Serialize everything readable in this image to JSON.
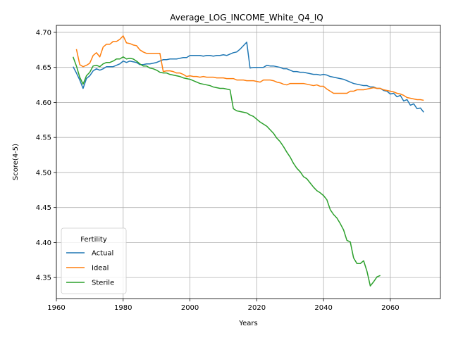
{
  "chart_data": {
    "type": "line",
    "title": "Average_LOG_INCOME_White_Q4_IQ",
    "xlabel": "Years",
    "ylabel": "Score(4-5)",
    "xlim": [
      1960,
      2075
    ],
    "ylim": [
      4.32,
      4.71
    ],
    "xticks": [
      1960,
      1980,
      2000,
      2020,
      2040,
      2060
    ],
    "yticks": [
      4.35,
      4.4,
      4.45,
      4.5,
      4.55,
      4.6,
      4.65,
      4.7
    ],
    "grid": true,
    "legend": {
      "title": "Fertility",
      "placement": "lower-left"
    },
    "series": [
      {
        "name": "Actual",
        "color": "#1f77b4",
        "points": [
          [
            1965,
            4.651
          ],
          [
            1966,
            4.642
          ],
          [
            1967,
            4.632
          ],
          [
            1968,
            4.62
          ],
          [
            1969,
            4.634
          ],
          [
            1970,
            4.638
          ],
          [
            1971,
            4.645
          ],
          [
            1972,
            4.648
          ],
          [
            1973,
            4.646
          ],
          [
            1974,
            4.648
          ],
          [
            1975,
            4.651
          ],
          [
            1976,
            4.651
          ],
          [
            1977,
            4.651
          ],
          [
            1978,
            4.653
          ],
          [
            1979,
            4.655
          ],
          [
            1980,
            4.659
          ],
          [
            1981,
            4.657
          ],
          [
            1982,
            4.659
          ],
          [
            1983,
            4.658
          ],
          [
            1984,
            4.657
          ],
          [
            1985,
            4.654
          ],
          [
            1986,
            4.654
          ],
          [
            1987,
            4.655
          ],
          [
            1988,
            4.655
          ],
          [
            1989,
            4.656
          ],
          [
            1990,
            4.657
          ],
          [
            1991,
            4.659
          ],
          [
            1992,
            4.661
          ],
          [
            1993,
            4.661
          ],
          [
            1994,
            4.662
          ],
          [
            1995,
            4.662
          ],
          [
            1996,
            4.662
          ],
          [
            1997,
            4.663
          ],
          [
            1998,
            4.664
          ],
          [
            1999,
            4.664
          ],
          [
            2000,
            4.667
          ],
          [
            2001,
            4.667
          ],
          [
            2002,
            4.667
          ],
          [
            2003,
            4.667
          ],
          [
            2004,
            4.666
          ],
          [
            2005,
            4.667
          ],
          [
            2006,
            4.667
          ],
          [
            2007,
            4.666
          ],
          [
            2008,
            4.667
          ],
          [
            2009,
            4.667
          ],
          [
            2010,
            4.668
          ],
          [
            2011,
            4.667
          ],
          [
            2012,
            4.669
          ],
          [
            2013,
            4.671
          ],
          [
            2014,
            4.672
          ],
          [
            2015,
            4.676
          ],
          [
            2016,
            4.681
          ],
          [
            2017,
            4.686
          ],
          [
            2018,
            4.649
          ],
          [
            2019,
            4.65
          ],
          [
            2020,
            4.65
          ],
          [
            2021,
            4.65
          ],
          [
            2022,
            4.65
          ],
          [
            2023,
            4.653
          ],
          [
            2024,
            4.652
          ],
          [
            2025,
            4.652
          ],
          [
            2026,
            4.651
          ],
          [
            2027,
            4.65
          ],
          [
            2028,
            4.648
          ],
          [
            2029,
            4.648
          ],
          [
            2030,
            4.646
          ],
          [
            2031,
            4.644
          ],
          [
            2032,
            4.644
          ],
          [
            2033,
            4.643
          ],
          [
            2034,
            4.643
          ],
          [
            2035,
            4.642
          ],
          [
            2036,
            4.641
          ],
          [
            2037,
            4.64
          ],
          [
            2038,
            4.64
          ],
          [
            2039,
            4.639
          ],
          [
            2040,
            4.64
          ],
          [
            2041,
            4.639
          ],
          [
            2042,
            4.637
          ],
          [
            2043,
            4.636
          ],
          [
            2044,
            4.635
          ],
          [
            2045,
            4.634
          ],
          [
            2046,
            4.633
          ],
          [
            2047,
            4.631
          ],
          [
            2048,
            4.629
          ],
          [
            2049,
            4.627
          ],
          [
            2050,
            4.626
          ],
          [
            2051,
            4.625
          ],
          [
            2052,
            4.624
          ],
          [
            2053,
            4.624
          ],
          [
            2054,
            4.622
          ],
          [
            2055,
            4.622
          ],
          [
            2056,
            4.62
          ],
          [
            2057,
            4.62
          ],
          [
            2058,
            4.617
          ],
          [
            2059,
            4.616
          ],
          [
            2060,
            4.612
          ],
          [
            2061,
            4.613
          ],
          [
            2062,
            4.608
          ],
          [
            2063,
            4.61
          ],
          [
            2064,
            4.602
          ],
          [
            2065,
            4.604
          ],
          [
            2066,
            4.596
          ],
          [
            2067,
            4.598
          ],
          [
            2068,
            4.591
          ],
          [
            2069,
            4.592
          ],
          [
            2070,
            4.586
          ]
        ]
      },
      {
        "name": "Ideal",
        "color": "#ff7f0e",
        "points": [
          [
            1966,
            4.676
          ],
          [
            1967,
            4.654
          ],
          [
            1968,
            4.651
          ],
          [
            1969,
            4.653
          ],
          [
            1970,
            4.656
          ],
          [
            1971,
            4.667
          ],
          [
            1972,
            4.671
          ],
          [
            1973,
            4.665
          ],
          [
            1974,
            4.679
          ],
          [
            1975,
            4.683
          ],
          [
            1976,
            4.683
          ],
          [
            1977,
            4.687
          ],
          [
            1978,
            4.687
          ],
          [
            1979,
            4.69
          ],
          [
            1980,
            4.695
          ],
          [
            1981,
            4.685
          ],
          [
            1982,
            4.684
          ],
          [
            1983,
            4.682
          ],
          [
            1984,
            4.681
          ],
          [
            1985,
            4.675
          ],
          [
            1986,
            4.672
          ],
          [
            1987,
            4.67
          ],
          [
            1988,
            4.67
          ],
          [
            1989,
            4.67
          ],
          [
            1990,
            4.67
          ],
          [
            1991,
            4.67
          ],
          [
            1992,
            4.644
          ],
          [
            1993,
            4.645
          ],
          [
            1994,
            4.645
          ],
          [
            1995,
            4.644
          ],
          [
            1996,
            4.642
          ],
          [
            1997,
            4.642
          ],
          [
            1998,
            4.64
          ],
          [
            1999,
            4.637
          ],
          [
            2000,
            4.638
          ],
          [
            2001,
            4.637
          ],
          [
            2002,
            4.637
          ],
          [
            2003,
            4.636
          ],
          [
            2004,
            4.637
          ],
          [
            2005,
            4.636
          ],
          [
            2006,
            4.636
          ],
          [
            2007,
            4.636
          ],
          [
            2008,
            4.635
          ],
          [
            2009,
            4.635
          ],
          [
            2010,
            4.635
          ],
          [
            2011,
            4.634
          ],
          [
            2012,
            4.634
          ],
          [
            2013,
            4.634
          ],
          [
            2014,
            4.632
          ],
          [
            2015,
            4.632
          ],
          [
            2016,
            4.632
          ],
          [
            2017,
            4.631
          ],
          [
            2018,
            4.631
          ],
          [
            2019,
            4.631
          ],
          [
            2020,
            4.63
          ],
          [
            2021,
            4.629
          ],
          [
            2022,
            4.632
          ],
          [
            2023,
            4.632
          ],
          [
            2024,
            4.632
          ],
          [
            2025,
            4.631
          ],
          [
            2026,
            4.629
          ],
          [
            2027,
            4.628
          ],
          [
            2028,
            4.626
          ],
          [
            2029,
            4.625
          ],
          [
            2030,
            4.627
          ],
          [
            2031,
            4.627
          ],
          [
            2032,
            4.627
          ],
          [
            2033,
            4.627
          ],
          [
            2034,
            4.627
          ],
          [
            2035,
            4.626
          ],
          [
            2036,
            4.625
          ],
          [
            2037,
            4.624
          ],
          [
            2038,
            4.625
          ],
          [
            2039,
            4.623
          ],
          [
            2040,
            4.623
          ],
          [
            2041,
            4.619
          ],
          [
            2042,
            4.616
          ],
          [
            2043,
            4.613
          ],
          [
            2044,
            4.613
          ],
          [
            2045,
            4.613
          ],
          [
            2046,
            4.613
          ],
          [
            2047,
            4.613
          ],
          [
            2048,
            4.616
          ],
          [
            2049,
            4.616
          ],
          [
            2050,
            4.618
          ],
          [
            2051,
            4.618
          ],
          [
            2052,
            4.618
          ],
          [
            2053,
            4.619
          ],
          [
            2054,
            4.62
          ],
          [
            2055,
            4.621
          ],
          [
            2056,
            4.62
          ],
          [
            2057,
            4.62
          ],
          [
            2058,
            4.618
          ],
          [
            2059,
            4.617
          ],
          [
            2060,
            4.616
          ],
          [
            2061,
            4.615
          ],
          [
            2062,
            4.613
          ],
          [
            2063,
            4.612
          ],
          [
            2064,
            4.61
          ],
          [
            2065,
            4.607
          ],
          [
            2066,
            4.606
          ],
          [
            2067,
            4.605
          ],
          [
            2068,
            4.604
          ],
          [
            2069,
            4.604
          ],
          [
            2070,
            4.603
          ]
        ]
      },
      {
        "name": "Sterile",
        "color": "#2ca02c",
        "points": [
          [
            1965,
            4.665
          ],
          [
            1966,
            4.652
          ],
          [
            1967,
            4.636
          ],
          [
            1968,
            4.626
          ],
          [
            1969,
            4.638
          ],
          [
            1970,
            4.643
          ],
          [
            1971,
            4.652
          ],
          [
            1972,
            4.653
          ],
          [
            1973,
            4.651
          ],
          [
            1974,
            4.655
          ],
          [
            1975,
            4.657
          ],
          [
            1976,
            4.657
          ],
          [
            1977,
            4.659
          ],
          [
            1978,
            4.662
          ],
          [
            1979,
            4.662
          ],
          [
            1980,
            4.665
          ],
          [
            1981,
            4.662
          ],
          [
            1982,
            4.663
          ],
          [
            1983,
            4.662
          ],
          [
            1984,
            4.659
          ],
          [
            1985,
            4.655
          ],
          [
            1986,
            4.652
          ],
          [
            1987,
            4.652
          ],
          [
            1988,
            4.649
          ],
          [
            1989,
            4.648
          ],
          [
            1990,
            4.646
          ],
          [
            1991,
            4.643
          ],
          [
            1992,
            4.642
          ],
          [
            1993,
            4.642
          ],
          [
            1994,
            4.64
          ],
          [
            1995,
            4.639
          ],
          [
            1996,
            4.638
          ],
          [
            1997,
            4.637
          ],
          [
            1998,
            4.635
          ],
          [
            1999,
            4.634
          ],
          [
            2000,
            4.633
          ],
          [
            2001,
            4.631
          ],
          [
            2002,
            4.629
          ],
          [
            2003,
            4.627
          ],
          [
            2004,
            4.626
          ],
          [
            2005,
            4.625
          ],
          [
            2006,
            4.624
          ],
          [
            2007,
            4.622
          ],
          [
            2008,
            4.621
          ],
          [
            2009,
            4.62
          ],
          [
            2010,
            4.62
          ],
          [
            2011,
            4.619
          ],
          [
            2012,
            4.618
          ],
          [
            2013,
            4.591
          ],
          [
            2014,
            4.588
          ],
          [
            2015,
            4.587
          ],
          [
            2016,
            4.586
          ],
          [
            2017,
            4.585
          ],
          [
            2018,
            4.582
          ],
          [
            2019,
            4.58
          ],
          [
            2020,
            4.576
          ],
          [
            2021,
            4.572
          ],
          [
            2022,
            4.569
          ],
          [
            2023,
            4.566
          ],
          [
            2024,
            4.561
          ],
          [
            2025,
            4.556
          ],
          [
            2026,
            4.549
          ],
          [
            2027,
            4.544
          ],
          [
            2028,
            4.537
          ],
          [
            2029,
            4.529
          ],
          [
            2030,
            4.522
          ],
          [
            2031,
            4.513
          ],
          [
            2032,
            4.506
          ],
          [
            2033,
            4.501
          ],
          [
            2034,
            4.494
          ],
          [
            2035,
            4.491
          ],
          [
            2036,
            4.485
          ],
          [
            2037,
            4.479
          ],
          [
            2038,
            4.474
          ],
          [
            2039,
            4.471
          ],
          [
            2040,
            4.467
          ],
          [
            2041,
            4.461
          ],
          [
            2042,
            4.447
          ],
          [
            2043,
            4.44
          ],
          [
            2044,
            4.435
          ],
          [
            2045,
            4.427
          ],
          [
            2046,
            4.418
          ],
          [
            2047,
            4.403
          ],
          [
            2048,
            4.401
          ],
          [
            2049,
            4.378
          ],
          [
            2050,
            4.37
          ],
          [
            2051,
            4.37
          ],
          [
            2052,
            4.374
          ],
          [
            2053,
            4.359
          ],
          [
            2054,
            4.338
          ],
          [
            2055,
            4.344
          ],
          [
            2056,
            4.351
          ],
          [
            2057,
            4.353
          ]
        ]
      }
    ]
  }
}
